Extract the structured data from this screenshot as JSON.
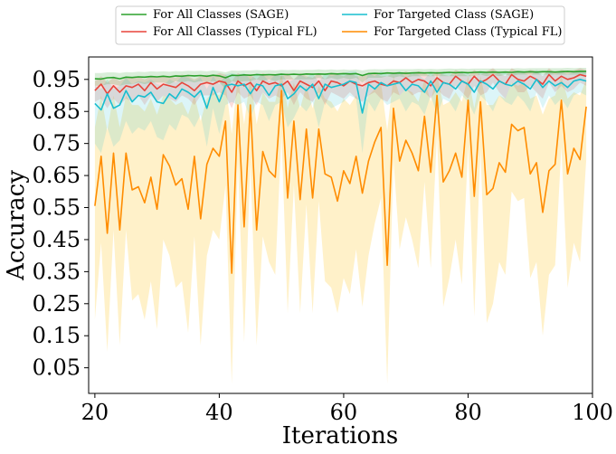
{
  "chart_data": {
    "type": "line",
    "title": "",
    "xlabel": "Iterations",
    "ylabel": "Accuracy",
    "xlim": [
      19,
      100
    ],
    "ylim": [
      -0.03,
      1.02
    ],
    "xticks": [
      20,
      40,
      60,
      80,
      100
    ],
    "yticks": [
      0.05,
      0.15,
      0.25,
      0.35,
      0.45,
      0.55,
      0.65,
      0.75,
      0.85,
      0.95
    ],
    "xtick_labels": [
      "20",
      "40",
      "60",
      "80",
      "100"
    ],
    "ytick_labels": [
      "0.05",
      "0.15",
      "0.25",
      "0.35",
      "0.45",
      "0.55",
      "0.65",
      "0.75",
      "0.85",
      "0.95"
    ],
    "grid": false,
    "legend": "top (above plot), 2 columns",
    "x": [
      20,
      21,
      22,
      23,
      24,
      25,
      26,
      27,
      28,
      29,
      30,
      31,
      32,
      33,
      34,
      35,
      36,
      37,
      38,
      39,
      40,
      41,
      42,
      43,
      44,
      45,
      46,
      47,
      48,
      49,
      50,
      51,
      52,
      53,
      54,
      55,
      56,
      57,
      58,
      59,
      60,
      61,
      62,
      63,
      64,
      65,
      66,
      67,
      68,
      69,
      70,
      71,
      72,
      73,
      74,
      75,
      76,
      77,
      78,
      79,
      80,
      81,
      82,
      83,
      84,
      85,
      86,
      87,
      88,
      89,
      90,
      91,
      92,
      93,
      94,
      95,
      96,
      97,
      98,
      99
    ],
    "series": [
      {
        "name": "For All Classes (SAGE)",
        "color": "#2ca02c",
        "band_color": "#2ca02c",
        "band_opacity": 0.18,
        "values": [
          0.952,
          0.951,
          0.955,
          0.956,
          0.952,
          0.957,
          0.956,
          0.958,
          0.957,
          0.959,
          0.958,
          0.96,
          0.958,
          0.961,
          0.96,
          0.962,
          0.961,
          0.962,
          0.96,
          0.963,
          0.961,
          0.955,
          0.963,
          0.962,
          0.964,
          0.963,
          0.965,
          0.964,
          0.965,
          0.964,
          0.966,
          0.965,
          0.966,
          0.965,
          0.967,
          0.966,
          0.967,
          0.966,
          0.968,
          0.967,
          0.968,
          0.967,
          0.968,
          0.962,
          0.968,
          0.969,
          0.968,
          0.97,
          0.969,
          0.97,
          0.969,
          0.97,
          0.971,
          0.97,
          0.971,
          0.97,
          0.971,
          0.972,
          0.971,
          0.972,
          0.971,
          0.972,
          0.973,
          0.972,
          0.973,
          0.972,
          0.973,
          0.972,
          0.974,
          0.973,
          0.974,
          0.973,
          0.974,
          0.974,
          0.973,
          0.974,
          0.975,
          0.974,
          0.975,
          0.975
        ],
        "lower": [
          0.93,
          0.93,
          0.935,
          0.935,
          0.93,
          0.935,
          0.935,
          0.94,
          0.935,
          0.94,
          0.94,
          0.94,
          0.935,
          0.945,
          0.94,
          0.945,
          0.94,
          0.945,
          0.94,
          0.945,
          0.94,
          0.92,
          0.945,
          0.94,
          0.945,
          0.945,
          0.95,
          0.945,
          0.95,
          0.945,
          0.95,
          0.95,
          0.95,
          0.95,
          0.95,
          0.95,
          0.955,
          0.95,
          0.955,
          0.95,
          0.955,
          0.95,
          0.955,
          0.94,
          0.955,
          0.955,
          0.955,
          0.96,
          0.955,
          0.96,
          0.955,
          0.96,
          0.96,
          0.96,
          0.96,
          0.96,
          0.96,
          0.96,
          0.96,
          0.96,
          0.96,
          0.96,
          0.965,
          0.96,
          0.965,
          0.96,
          0.965,
          0.96,
          0.965,
          0.965,
          0.965,
          0.965,
          0.965,
          0.965,
          0.965,
          0.965,
          0.965,
          0.965,
          0.965,
          0.965
        ],
        "upper": [
          0.97,
          0.97,
          0.972,
          0.972,
          0.97,
          0.973,
          0.972,
          0.974,
          0.973,
          0.975,
          0.974,
          0.975,
          0.974,
          0.976,
          0.975,
          0.977,
          0.976,
          0.977,
          0.975,
          0.978,
          0.976,
          0.972,
          0.978,
          0.977,
          0.978,
          0.978,
          0.979,
          0.978,
          0.979,
          0.978,
          0.98,
          0.979,
          0.98,
          0.979,
          0.98,
          0.98,
          0.981,
          0.98,
          0.981,
          0.98,
          0.981,
          0.98,
          0.981,
          0.978,
          0.981,
          0.982,
          0.981,
          0.982,
          0.982,
          0.982,
          0.982,
          0.982,
          0.983,
          0.982,
          0.983,
          0.982,
          0.983,
          0.984,
          0.983,
          0.984,
          0.983,
          0.984,
          0.984,
          0.984,
          0.984,
          0.984,
          0.984,
          0.984,
          0.985,
          0.984,
          0.985,
          0.985,
          0.985,
          0.985,
          0.985,
          0.985,
          0.986,
          0.985,
          0.986,
          0.986
        ]
      },
      {
        "name": "For All Classes (Typical FL)",
        "color": "#e8443a",
        "band_color": "#e8443a",
        "band_opacity": 0.18,
        "values": [
          0.915,
          0.935,
          0.905,
          0.93,
          0.91,
          0.93,
          0.925,
          0.935,
          0.915,
          0.94,
          0.92,
          0.935,
          0.93,
          0.925,
          0.94,
          0.93,
          0.915,
          0.935,
          0.94,
          0.935,
          0.945,
          0.94,
          0.91,
          0.945,
          0.93,
          0.94,
          0.915,
          0.945,
          0.935,
          0.94,
          0.93,
          0.945,
          0.915,
          0.945,
          0.935,
          0.925,
          0.945,
          0.915,
          0.945,
          0.94,
          0.93,
          0.945,
          0.935,
          0.93,
          0.94,
          0.945,
          0.935,
          0.93,
          0.945,
          0.94,
          0.955,
          0.94,
          0.95,
          0.945,
          0.93,
          0.955,
          0.94,
          0.935,
          0.96,
          0.945,
          0.935,
          0.96,
          0.94,
          0.95,
          0.965,
          0.945,
          0.935,
          0.965,
          0.95,
          0.945,
          0.96,
          0.95,
          0.935,
          0.965,
          0.945,
          0.96,
          0.95,
          0.955,
          0.965,
          0.96
        ],
        "lower": [
          0.88,
          0.89,
          0.86,
          0.89,
          0.87,
          0.89,
          0.88,
          0.9,
          0.87,
          0.9,
          0.88,
          0.9,
          0.89,
          0.88,
          0.9,
          0.89,
          0.87,
          0.9,
          0.9,
          0.9,
          0.91,
          0.9,
          0.86,
          0.91,
          0.89,
          0.9,
          0.87,
          0.91,
          0.89,
          0.9,
          0.89,
          0.91,
          0.87,
          0.91,
          0.89,
          0.88,
          0.91,
          0.87,
          0.91,
          0.9,
          0.89,
          0.91,
          0.89,
          0.88,
          0.9,
          0.91,
          0.89,
          0.88,
          0.91,
          0.9,
          0.92,
          0.9,
          0.91,
          0.91,
          0.89,
          0.92,
          0.9,
          0.89,
          0.93,
          0.91,
          0.89,
          0.93,
          0.9,
          0.91,
          0.94,
          0.91,
          0.89,
          0.94,
          0.91,
          0.91,
          0.93,
          0.91,
          0.89,
          0.94,
          0.91,
          0.93,
          0.91,
          0.92,
          0.94,
          0.93
        ],
        "upper": [
          0.945,
          0.96,
          0.94,
          0.955,
          0.945,
          0.955,
          0.955,
          0.96,
          0.95,
          0.96,
          0.955,
          0.96,
          0.96,
          0.955,
          0.965,
          0.96,
          0.95,
          0.96,
          0.965,
          0.96,
          0.97,
          0.965,
          0.945,
          0.97,
          0.96,
          0.965,
          0.95,
          0.97,
          0.96,
          0.965,
          0.96,
          0.97,
          0.95,
          0.97,
          0.96,
          0.955,
          0.97,
          0.95,
          0.97,
          0.965,
          0.96,
          0.97,
          0.96,
          0.96,
          0.965,
          0.97,
          0.96,
          0.96,
          0.97,
          0.965,
          0.975,
          0.965,
          0.975,
          0.97,
          0.96,
          0.975,
          0.965,
          0.96,
          0.98,
          0.97,
          0.96,
          0.98,
          0.965,
          0.975,
          0.985,
          0.97,
          0.96,
          0.985,
          0.975,
          0.97,
          0.98,
          0.975,
          0.96,
          0.985,
          0.97,
          0.98,
          0.975,
          0.978,
          0.985,
          0.98
        ]
      },
      {
        "name": "For Targeted Class (SAGE)",
        "color": "#17becf",
        "band_color": "#17becf",
        "band_opacity": 0.15,
        "values": [
          0.875,
          0.855,
          0.905,
          0.86,
          0.87,
          0.915,
          0.88,
          0.9,
          0.895,
          0.91,
          0.88,
          0.875,
          0.905,
          0.89,
          0.92,
          0.91,
          0.895,
          0.915,
          0.86,
          0.925,
          0.88,
          0.93,
          0.935,
          0.93,
          0.935,
          0.905,
          0.935,
          0.93,
          0.9,
          0.93,
          0.935,
          0.89,
          0.905,
          0.93,
          0.915,
          0.935,
          0.89,
          0.935,
          0.925,
          0.93,
          0.935,
          0.945,
          0.94,
          0.845,
          0.935,
          0.92,
          0.94,
          0.93,
          0.935,
          0.94,
          0.915,
          0.935,
          0.93,
          0.91,
          0.945,
          0.91,
          0.94,
          0.935,
          0.92,
          0.945,
          0.935,
          0.91,
          0.945,
          0.935,
          0.92,
          0.945,
          0.935,
          0.93,
          0.945,
          0.935,
          0.92,
          0.95,
          0.925,
          0.945,
          0.93,
          0.94,
          0.925,
          0.945,
          0.95,
          0.945
        ],
        "lower": [
          0.75,
          0.72,
          0.8,
          0.74,
          0.76,
          0.82,
          0.78,
          0.8,
          0.79,
          0.82,
          0.77,
          0.76,
          0.81,
          0.79,
          0.84,
          0.83,
          0.8,
          0.84,
          0.74,
          0.86,
          0.78,
          0.87,
          0.88,
          0.87,
          0.88,
          0.83,
          0.88,
          0.87,
          0.82,
          0.87,
          0.88,
          0.8,
          0.83,
          0.87,
          0.85,
          0.88,
          0.8,
          0.88,
          0.86,
          0.87,
          0.88,
          0.9,
          0.89,
          0.72,
          0.88,
          0.85,
          0.89,
          0.87,
          0.88,
          0.89,
          0.85,
          0.88,
          0.87,
          0.84,
          0.9,
          0.84,
          0.89,
          0.88,
          0.85,
          0.9,
          0.88,
          0.84,
          0.9,
          0.88,
          0.85,
          0.9,
          0.88,
          0.87,
          0.9,
          0.88,
          0.85,
          0.91,
          0.86,
          0.9,
          0.87,
          0.89,
          0.86,
          0.9,
          0.91,
          0.9
        ],
        "upper": [
          0.93,
          0.92,
          0.95,
          0.92,
          0.93,
          0.955,
          0.935,
          0.945,
          0.94,
          0.95,
          0.935,
          0.93,
          0.95,
          0.94,
          0.96,
          0.955,
          0.945,
          0.955,
          0.92,
          0.96,
          0.935,
          0.965,
          0.97,
          0.965,
          0.97,
          0.95,
          0.97,
          0.965,
          0.945,
          0.965,
          0.97,
          0.94,
          0.95,
          0.965,
          0.955,
          0.97,
          0.94,
          0.97,
          0.96,
          0.965,
          0.97,
          0.975,
          0.975,
          0.92,
          0.97,
          0.96,
          0.975,
          0.965,
          0.97,
          0.975,
          0.955,
          0.97,
          0.965,
          0.95,
          0.975,
          0.95,
          0.975,
          0.97,
          0.96,
          0.975,
          0.97,
          0.95,
          0.975,
          0.97,
          0.96,
          0.975,
          0.97,
          0.965,
          0.975,
          0.97,
          0.96,
          0.98,
          0.965,
          0.975,
          0.965,
          0.975,
          0.965,
          0.975,
          0.98,
          0.975
        ]
      },
      {
        "name": "For Targeted Class (Typical FL)",
        "color": "#ff8c00",
        "band_color": "#ffd24d",
        "band_opacity": 0.3,
        "values": [
          0.555,
          0.71,
          0.47,
          0.72,
          0.48,
          0.72,
          0.605,
          0.615,
          0.565,
          0.645,
          0.545,
          0.715,
          0.68,
          0.62,
          0.64,
          0.545,
          0.71,
          0.515,
          0.685,
          0.735,
          0.71,
          0.82,
          0.345,
          0.87,
          0.49,
          0.87,
          0.48,
          0.725,
          0.665,
          0.645,
          0.915,
          0.58,
          0.82,
          0.575,
          0.795,
          0.58,
          0.795,
          0.655,
          0.645,
          0.57,
          0.665,
          0.625,
          0.71,
          0.595,
          0.695,
          0.755,
          0.8,
          0.37,
          0.86,
          0.695,
          0.76,
          0.72,
          0.665,
          0.835,
          0.66,
          0.9,
          0.63,
          0.665,
          0.72,
          0.645,
          0.885,
          0.585,
          0.88,
          0.59,
          0.61,
          0.69,
          0.66,
          0.81,
          0.79,
          0.8,
          0.655,
          0.69,
          0.535,
          0.665,
          0.685,
          0.885,
          0.655,
          0.735,
          0.7,
          0.865
        ],
        "lower": [
          0.2,
          0.44,
          0.1,
          0.48,
          0.12,
          0.48,
          0.26,
          0.28,
          0.2,
          0.32,
          0.17,
          0.45,
          0.4,
          0.3,
          0.32,
          0.16,
          0.46,
          0.12,
          0.4,
          0.48,
          0.45,
          0.62,
          0.0,
          0.7,
          0.13,
          0.69,
          0.12,
          0.46,
          0.38,
          0.34,
          0.78,
          0.22,
          0.62,
          0.22,
          0.56,
          0.22,
          0.57,
          0.32,
          0.3,
          0.22,
          0.33,
          0.28,
          0.42,
          0.24,
          0.4,
          0.5,
          0.58,
          0.0,
          0.7,
          0.42,
          0.52,
          0.45,
          0.36,
          0.63,
          0.36,
          0.78,
          0.24,
          0.33,
          0.45,
          0.31,
          0.74,
          0.21,
          0.73,
          0.19,
          0.25,
          0.38,
          0.34,
          0.6,
          0.57,
          0.58,
          0.33,
          0.38,
          0.15,
          0.34,
          0.37,
          0.74,
          0.3,
          0.44,
          0.38,
          0.7
        ],
        "upper": [
          0.8,
          0.9,
          0.79,
          0.9,
          0.8,
          0.9,
          0.87,
          0.87,
          0.85,
          0.89,
          0.84,
          0.9,
          0.89,
          0.87,
          0.88,
          0.84,
          0.9,
          0.82,
          0.89,
          0.91,
          0.9,
          0.94,
          0.78,
          0.96,
          0.81,
          0.96,
          0.81,
          0.91,
          0.88,
          0.88,
          0.97,
          0.86,
          0.94,
          0.86,
          0.93,
          0.86,
          0.93,
          0.89,
          0.88,
          0.85,
          0.89,
          0.87,
          0.9,
          0.86,
          0.9,
          0.92,
          0.94,
          0.79,
          0.96,
          0.9,
          0.92,
          0.91,
          0.88,
          0.95,
          0.88,
          0.97,
          0.87,
          0.88,
          0.91,
          0.88,
          0.96,
          0.86,
          0.96,
          0.87,
          0.87,
          0.9,
          0.89,
          0.94,
          0.93,
          0.94,
          0.89,
          0.9,
          0.84,
          0.89,
          0.9,
          0.96,
          0.89,
          0.91,
          0.9,
          0.95
        ]
      }
    ]
  }
}
